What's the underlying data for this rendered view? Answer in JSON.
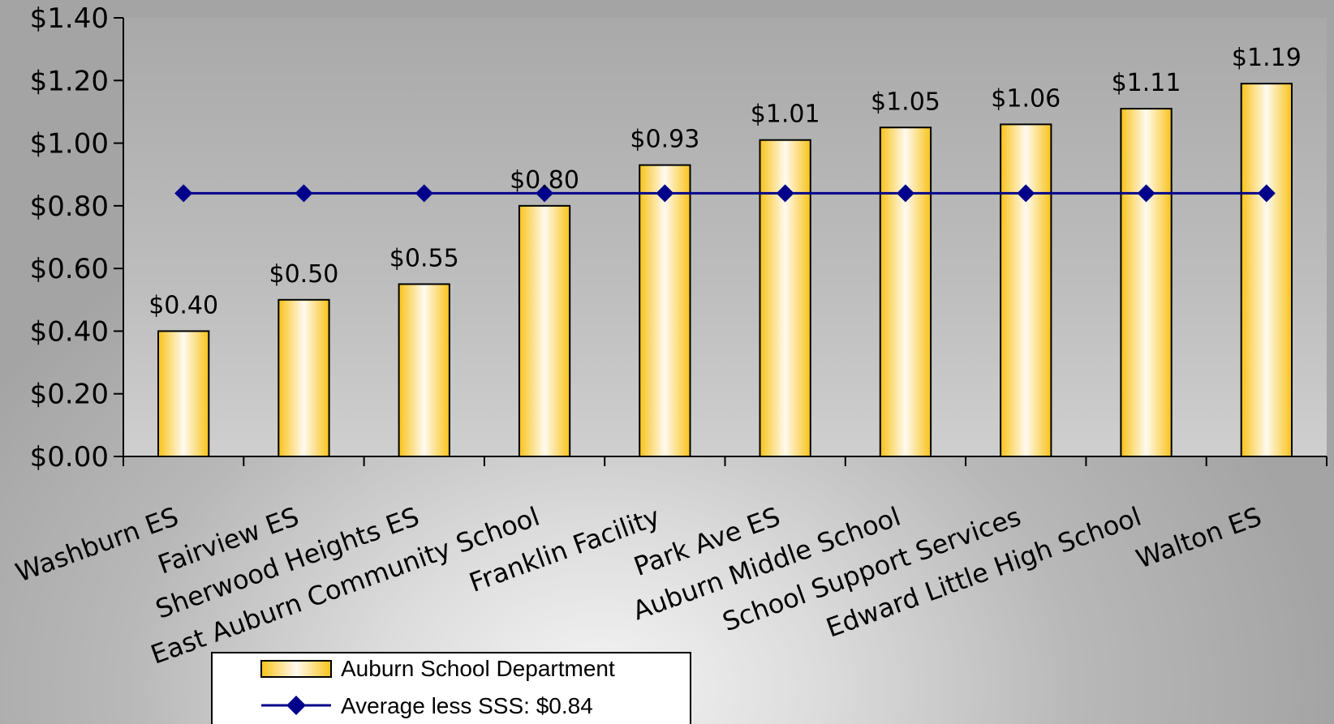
{
  "chart_data": {
    "type": "bar",
    "title": "",
    "xlabel": "",
    "ylabel": "",
    "categories": [
      "Washburn ES",
      "Fairview ES",
      "Sherwood Heights ES",
      "East Auburn Community School",
      "Franklin Facility",
      "Park Ave ES",
      "Auburn Middle School",
      "School Support Services",
      "Edward Little High School",
      "Walton ES"
    ],
    "series": [
      {
        "name": "Auburn School Department",
        "type": "bar",
        "values": [
          0.4,
          0.5,
          0.55,
          0.8,
          0.93,
          1.01,
          1.05,
          1.06,
          1.11,
          1.19
        ],
        "labels": [
          "$0.40",
          "$0.50",
          "$0.55",
          "$0.80",
          "$0.93",
          "$1.01",
          "$1.05",
          "$1.06",
          "$1.11",
          "$1.19"
        ],
        "color": "#f8c31a"
      },
      {
        "name": "Average less SSS: $0.84",
        "type": "line",
        "values": [
          0.84,
          0.84,
          0.84,
          0.84,
          0.84,
          0.84,
          0.84,
          0.84,
          0.84,
          0.84
        ],
        "color": "#00008b"
      }
    ],
    "ylim": [
      0,
      1.4
    ],
    "yticks": [
      "$0.00",
      "$0.20",
      "$0.40",
      "$0.60",
      "$0.80",
      "$1.00",
      "$1.20",
      "$1.40"
    ],
    "grid": false,
    "legend": "bottom-left"
  }
}
